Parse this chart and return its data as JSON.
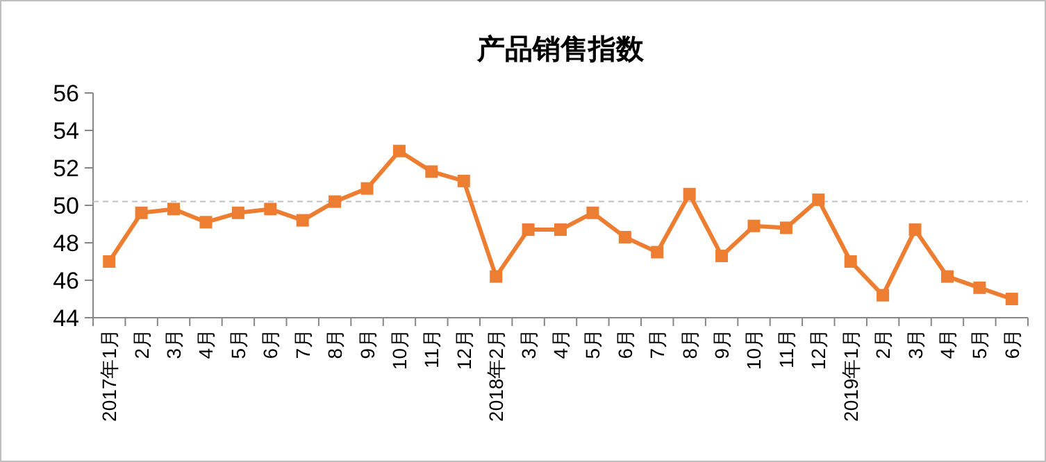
{
  "chart_data": {
    "type": "line",
    "title": "产品销售指数",
    "categories": [
      "2017年1月",
      "2月",
      "3月",
      "4月",
      "5月",
      "6月",
      "7月",
      "8月",
      "9月",
      "10月",
      "11月",
      "12月",
      "2018年2月",
      "3月",
      "4月",
      "5月",
      "6月",
      "7月",
      "8月",
      "9月",
      "10月",
      "11月",
      "12月",
      "2019年1月",
      "2月",
      "3月",
      "4月",
      "5月",
      "6月"
    ],
    "series": [
      {
        "color": "#ed7d31",
        "values": [
          47.0,
          49.6,
          49.8,
          49.1,
          49.6,
          49.8,
          49.2,
          50.2,
          50.9,
          52.9,
          51.8,
          51.3,
          46.2,
          48.7,
          48.7,
          49.6,
          48.3,
          47.5,
          50.6,
          47.3,
          48.9,
          48.8,
          50.3,
          47.0,
          45.2,
          48.7,
          46.2,
          45.6,
          45.0
        ]
      }
    ],
    "ylim": [
      44,
      56
    ],
    "yticks": [
      44,
      46,
      48,
      50,
      52,
      54,
      56
    ],
    "grid": false,
    "marker": "square",
    "line_style": "solid",
    "ref_lines": [
      {
        "axis": "y",
        "value": 50.2,
        "color": "#bfbfbf",
        "line_style": "dashed"
      }
    ]
  }
}
